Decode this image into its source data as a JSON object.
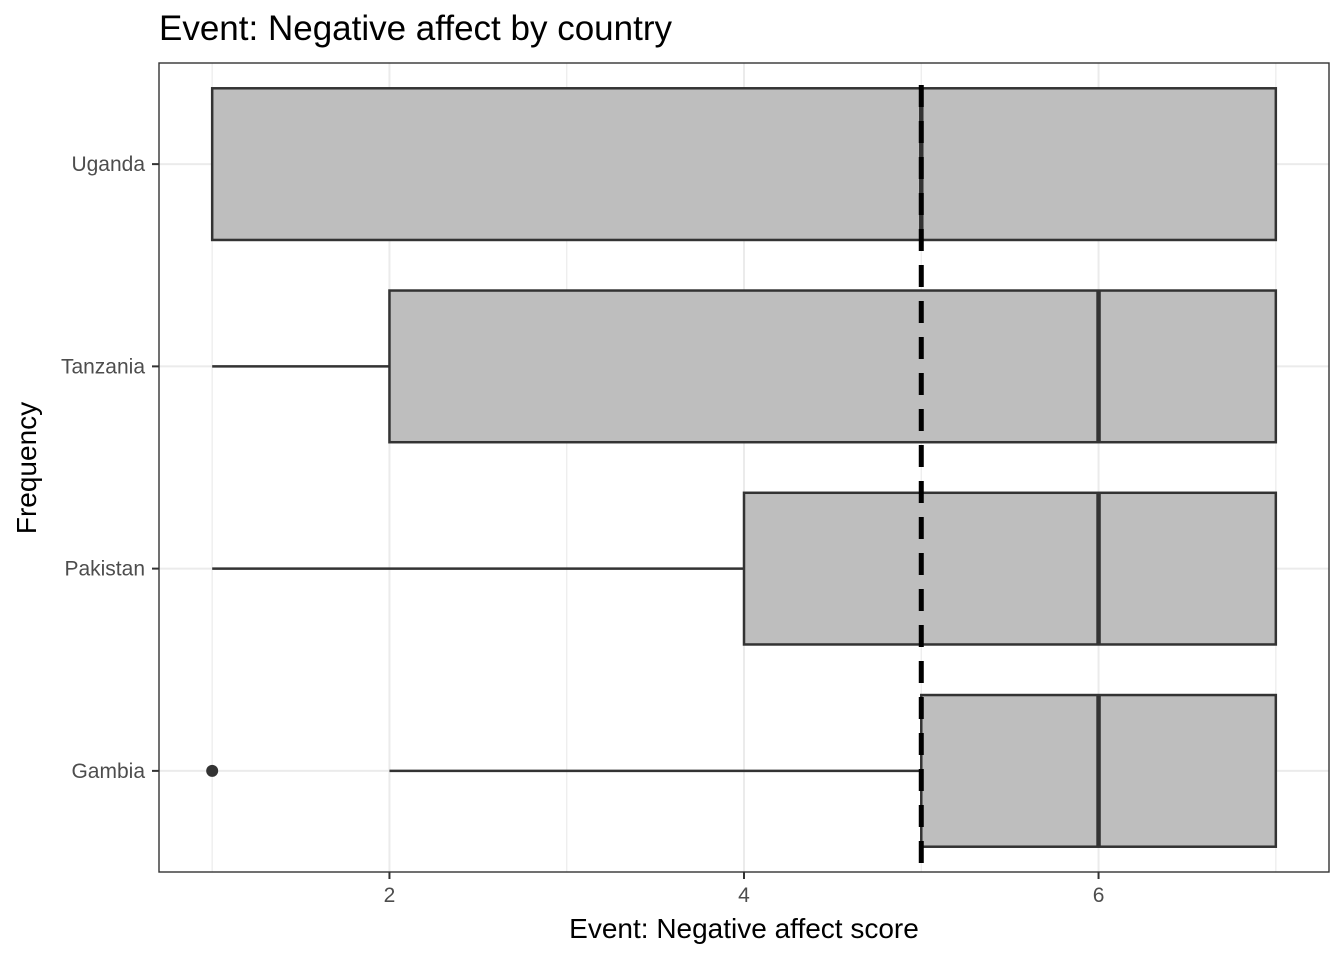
{
  "chart_data": {
    "type": "boxplot",
    "orientation": "horizontal",
    "title": "Event: Negative affect by country",
    "xlabel": "Event: Negative affect score",
    "ylabel": "Frequency",
    "xlim": [
      0.7,
      7.3
    ],
    "x_ticks": [
      2,
      4,
      6
    ],
    "categories": [
      "Uganda",
      "Tanzania",
      "Pakistan",
      "Gambia"
    ],
    "boxes": [
      {
        "category": "Uganda",
        "min": 1,
        "q1": 1,
        "median": 5,
        "q3": 7,
        "max": 7,
        "outliers": []
      },
      {
        "category": "Tanzania",
        "min": 1,
        "q1": 2,
        "median": 6,
        "q3": 7,
        "max": 7,
        "outliers": []
      },
      {
        "category": "Pakistan",
        "min": 1,
        "q1": 4,
        "median": 6,
        "q3": 7,
        "max": 7,
        "outliers": []
      },
      {
        "category": "Gambia",
        "min": 2,
        "q1": 5,
        "median": 6,
        "q3": 7,
        "max": 7,
        "outliers": [
          1
        ]
      }
    ],
    "reference_line": {
      "x": 5,
      "style": "dashed"
    },
    "grid": true,
    "colors": {
      "box_fill": "#bebebe",
      "box_stroke": "#333333",
      "grid": "#ebebeb",
      "reference": "#000000"
    }
  }
}
